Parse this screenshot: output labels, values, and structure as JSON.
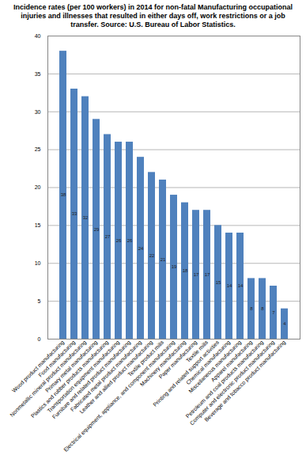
{
  "chart_data": {
    "type": "bar",
    "title": "Incidence rates (per 100 workers) in 2014 for non-fatal Manufacturing occupational injuries and illnesses that resulted in either days off, work restrictions or a job transfer.  Source: U.S. Bureau of Labor Statistics.",
    "categories": [
      "Wood product manufacturing",
      "Food manufacturing",
      "Nonmetallic mineral product manufacturing",
      "Primary metal manufacturing",
      "Plastics and rubber products manufacturing",
      "Transportation equipment manufacturing",
      "Furniture and related product manufacturing",
      "Fabricated metal product manufacturing",
      "Leather and allied product manufacturing",
      "Textile product mills",
      "Electrical equipment, appliance, and component manufacturing",
      "Machinery manufacturing",
      "Paper manufacturing",
      "Textile mills",
      "Printing and related support activities",
      "Chemical manufacturing",
      "Miscellaneous manufacturing",
      "Apparel manufacturing",
      "Petroleum and coal products manufacturing",
      "Computer and electronic product manufacturing",
      "Beverage and tobacco product manufacturing"
    ],
    "values": [
      38,
      33,
      32,
      29,
      27,
      26,
      26,
      24,
      22,
      21,
      19,
      18,
      17,
      17,
      15,
      14,
      14,
      8,
      8,
      7,
      4
    ],
    "color": "#4f81bd",
    "ylim": [
      0,
      40
    ],
    "yticks": [
      0,
      5,
      10,
      15,
      20,
      25,
      30,
      35,
      40
    ],
    "grid": true,
    "data_labels": true
  }
}
